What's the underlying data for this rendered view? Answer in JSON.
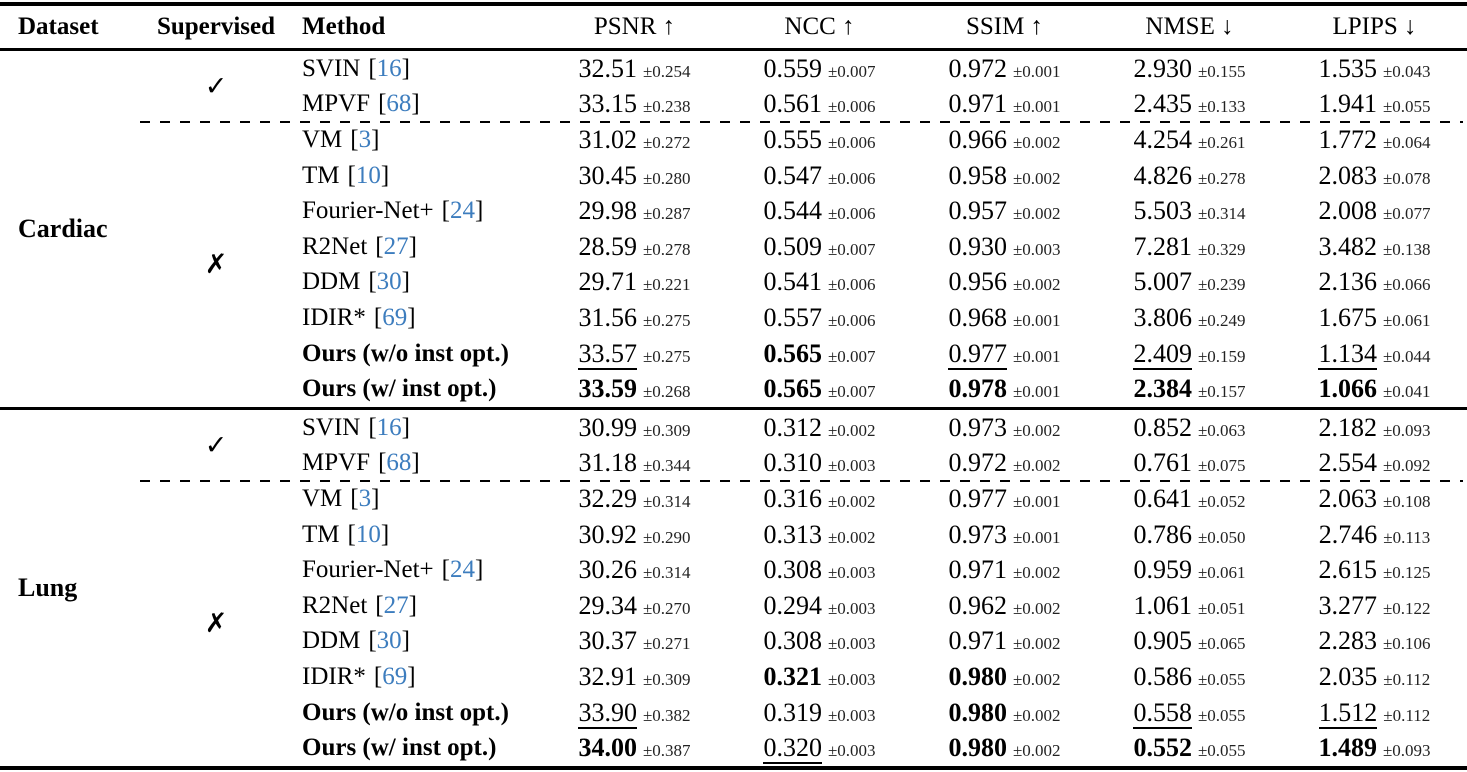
{
  "table": {
    "citation_color": "#3d7dbe",
    "citation_brackets": [
      "[",
      "]"
    ],
    "columns": [
      {
        "label": "Dataset",
        "kind": "left"
      },
      {
        "label": "Supervised",
        "kind": "left"
      },
      {
        "label": "Method",
        "kind": "left"
      },
      {
        "label": "PSNR ↑",
        "kind": "metric"
      },
      {
        "label": "NCC ↑",
        "kind": "metric"
      },
      {
        "label": "SSIM ↑",
        "kind": "metric"
      },
      {
        "label": "NMSE ↓",
        "kind": "metric"
      },
      {
        "label": "LPIPS ↓",
        "kind": "metric"
      }
    ],
    "supervised_yes_mark": "✓",
    "supervised_no_mark": "✗",
    "sections": [
      {
        "dataset": "Cardiac",
        "groups": [
          {
            "supervised": "yes",
            "rows": [
              {
                "method": "SVIN",
                "citation": "16",
                "bold": false,
                "metrics": [
                  {
                    "v": "32.51",
                    "pm": "±0.254",
                    "s": "n"
                  },
                  {
                    "v": "0.559",
                    "pm": "±0.007",
                    "s": "n"
                  },
                  {
                    "v": "0.972",
                    "pm": "±0.001",
                    "s": "n"
                  },
                  {
                    "v": "2.930",
                    "pm": "±0.155",
                    "s": "n"
                  },
                  {
                    "v": "1.535",
                    "pm": "±0.043",
                    "s": "n"
                  }
                ]
              },
              {
                "method": "MPVF",
                "citation": "68",
                "bold": false,
                "metrics": [
                  {
                    "v": "33.15",
                    "pm": "±0.238",
                    "s": "n"
                  },
                  {
                    "v": "0.561",
                    "pm": "±0.006",
                    "s": "n"
                  },
                  {
                    "v": "0.971",
                    "pm": "±0.001",
                    "s": "n"
                  },
                  {
                    "v": "2.435",
                    "pm": "±0.133",
                    "s": "n"
                  },
                  {
                    "v": "1.941",
                    "pm": "±0.055",
                    "s": "n"
                  }
                ]
              }
            ]
          },
          {
            "supervised": "no",
            "rows": [
              {
                "method": "VM",
                "citation": "3",
                "bold": false,
                "metrics": [
                  {
                    "v": "31.02",
                    "pm": "±0.272",
                    "s": "n"
                  },
                  {
                    "v": "0.555",
                    "pm": "±0.006",
                    "s": "n"
                  },
                  {
                    "v": "0.966",
                    "pm": "±0.002",
                    "s": "n"
                  },
                  {
                    "v": "4.254",
                    "pm": "±0.261",
                    "s": "n"
                  },
                  {
                    "v": "1.772",
                    "pm": "±0.064",
                    "s": "n"
                  }
                ]
              },
              {
                "method": "TM",
                "citation": "10",
                "bold": false,
                "metrics": [
                  {
                    "v": "30.45",
                    "pm": "±0.280",
                    "s": "n"
                  },
                  {
                    "v": "0.547",
                    "pm": "±0.006",
                    "s": "n"
                  },
                  {
                    "v": "0.958",
                    "pm": "±0.002",
                    "s": "n"
                  },
                  {
                    "v": "4.826",
                    "pm": "±0.278",
                    "s": "n"
                  },
                  {
                    "v": "2.083",
                    "pm": "±0.078",
                    "s": "n"
                  }
                ]
              },
              {
                "method": "Fourier-Net+",
                "citation": "24",
                "bold": false,
                "metrics": [
                  {
                    "v": "29.98",
                    "pm": "±0.287",
                    "s": "n"
                  },
                  {
                    "v": "0.544",
                    "pm": "±0.006",
                    "s": "n"
                  },
                  {
                    "v": "0.957",
                    "pm": "±0.002",
                    "s": "n"
                  },
                  {
                    "v": "5.503",
                    "pm": "±0.314",
                    "s": "n"
                  },
                  {
                    "v": "2.008",
                    "pm": "±0.077",
                    "s": "n"
                  }
                ]
              },
              {
                "method": "R2Net",
                "citation": "27",
                "bold": false,
                "metrics": [
                  {
                    "v": "28.59",
                    "pm": "±0.278",
                    "s": "n"
                  },
                  {
                    "v": "0.509",
                    "pm": "±0.007",
                    "s": "n"
                  },
                  {
                    "v": "0.930",
                    "pm": "±0.003",
                    "s": "n"
                  },
                  {
                    "v": "7.281",
                    "pm": "±0.329",
                    "s": "n"
                  },
                  {
                    "v": "3.482",
                    "pm": "±0.138",
                    "s": "n"
                  }
                ]
              },
              {
                "method": "DDM",
                "citation": "30",
                "bold": false,
                "metrics": [
                  {
                    "v": "29.71",
                    "pm": "±0.221",
                    "s": "n"
                  },
                  {
                    "v": "0.541",
                    "pm": "±0.006",
                    "s": "n"
                  },
                  {
                    "v": "0.956",
                    "pm": "±0.002",
                    "s": "n"
                  },
                  {
                    "v": "5.007",
                    "pm": "±0.239",
                    "s": "n"
                  },
                  {
                    "v": "2.136",
                    "pm": "±0.066",
                    "s": "n"
                  }
                ]
              },
              {
                "method": "IDIR*",
                "citation": "69",
                "bold": false,
                "metrics": [
                  {
                    "v": "31.56",
                    "pm": "±0.275",
                    "s": "n"
                  },
                  {
                    "v": "0.557",
                    "pm": "±0.006",
                    "s": "n"
                  },
                  {
                    "v": "0.968",
                    "pm": "±0.001",
                    "s": "n"
                  },
                  {
                    "v": "3.806",
                    "pm": "±0.249",
                    "s": "n"
                  },
                  {
                    "v": "1.675",
                    "pm": "±0.061",
                    "s": "n"
                  }
                ]
              },
              {
                "method": "Ours (w/o inst opt.)",
                "citation": null,
                "bold": true,
                "metrics": [
                  {
                    "v": "33.57",
                    "pm": "±0.275",
                    "s": "u"
                  },
                  {
                    "v": "0.565",
                    "pm": "±0.007",
                    "s": "b"
                  },
                  {
                    "v": "0.977",
                    "pm": "±0.001",
                    "s": "u"
                  },
                  {
                    "v": "2.409",
                    "pm": "±0.159",
                    "s": "u"
                  },
                  {
                    "v": "1.134",
                    "pm": "±0.044",
                    "s": "u"
                  }
                ]
              },
              {
                "method": "Ours (w/ inst opt.)",
                "citation": null,
                "bold": true,
                "metrics": [
                  {
                    "v": "33.59",
                    "pm": "±0.268",
                    "s": "b"
                  },
                  {
                    "v": "0.565",
                    "pm": "±0.007",
                    "s": "b"
                  },
                  {
                    "v": "0.978",
                    "pm": "±0.001",
                    "s": "b"
                  },
                  {
                    "v": "2.384",
                    "pm": "±0.157",
                    "s": "b"
                  },
                  {
                    "v": "1.066",
                    "pm": "±0.041",
                    "s": "b"
                  }
                ]
              }
            ]
          }
        ]
      },
      {
        "dataset": "Lung",
        "groups": [
          {
            "supervised": "yes",
            "rows": [
              {
                "method": "SVIN",
                "citation": "16",
                "bold": false,
                "metrics": [
                  {
                    "v": "30.99",
                    "pm": "±0.309",
                    "s": "n"
                  },
                  {
                    "v": "0.312",
                    "pm": "±0.002",
                    "s": "n"
                  },
                  {
                    "v": "0.973",
                    "pm": "±0.002",
                    "s": "n"
                  },
                  {
                    "v": "0.852",
                    "pm": "±0.063",
                    "s": "n"
                  },
                  {
                    "v": "2.182",
                    "pm": "±0.093",
                    "s": "n"
                  }
                ]
              },
              {
                "method": "MPVF",
                "citation": "68",
                "bold": false,
                "metrics": [
                  {
                    "v": "31.18",
                    "pm": "±0.344",
                    "s": "n"
                  },
                  {
                    "v": "0.310",
                    "pm": "±0.003",
                    "s": "n"
                  },
                  {
                    "v": "0.972",
                    "pm": "±0.002",
                    "s": "n"
                  },
                  {
                    "v": "0.761",
                    "pm": "±0.075",
                    "s": "n"
                  },
                  {
                    "v": "2.554",
                    "pm": "±0.092",
                    "s": "n"
                  }
                ]
              }
            ]
          },
          {
            "supervised": "no",
            "rows": [
              {
                "method": "VM",
                "citation": "3",
                "bold": false,
                "metrics": [
                  {
                    "v": "32.29",
                    "pm": "±0.314",
                    "s": "n"
                  },
                  {
                    "v": "0.316",
                    "pm": "±0.002",
                    "s": "n"
                  },
                  {
                    "v": "0.977",
                    "pm": "±0.001",
                    "s": "n"
                  },
                  {
                    "v": "0.641",
                    "pm": "±0.052",
                    "s": "n"
                  },
                  {
                    "v": "2.063",
                    "pm": "±0.108",
                    "s": "n"
                  }
                ]
              },
              {
                "method": "TM",
                "citation": "10",
                "bold": false,
                "metrics": [
                  {
                    "v": "30.92",
                    "pm": "±0.290",
                    "s": "n"
                  },
                  {
                    "v": "0.313",
                    "pm": "±0.002",
                    "s": "n"
                  },
                  {
                    "v": "0.973",
                    "pm": "±0.001",
                    "s": "n"
                  },
                  {
                    "v": "0.786",
                    "pm": "±0.050",
                    "s": "n"
                  },
                  {
                    "v": "2.746",
                    "pm": "±0.113",
                    "s": "n"
                  }
                ]
              },
              {
                "method": "Fourier-Net+",
                "citation": "24",
                "bold": false,
                "metrics": [
                  {
                    "v": "30.26",
                    "pm": "±0.314",
                    "s": "n"
                  },
                  {
                    "v": "0.308",
                    "pm": "±0.003",
                    "s": "n"
                  },
                  {
                    "v": "0.971",
                    "pm": "±0.002",
                    "s": "n"
                  },
                  {
                    "v": "0.959",
                    "pm": "±0.061",
                    "s": "n"
                  },
                  {
                    "v": "2.615",
                    "pm": "±0.125",
                    "s": "n"
                  }
                ]
              },
              {
                "method": "R2Net",
                "citation": "27",
                "bold": false,
                "metrics": [
                  {
                    "v": "29.34",
                    "pm": "±0.270",
                    "s": "n"
                  },
                  {
                    "v": "0.294",
                    "pm": "±0.003",
                    "s": "n"
                  },
                  {
                    "v": "0.962",
                    "pm": "±0.002",
                    "s": "n"
                  },
                  {
                    "v": "1.061",
                    "pm": "±0.051",
                    "s": "n"
                  },
                  {
                    "v": "3.277",
                    "pm": "±0.122",
                    "s": "n"
                  }
                ]
              },
              {
                "method": "DDM",
                "citation": "30",
                "bold": false,
                "metrics": [
                  {
                    "v": "30.37",
                    "pm": "±0.271",
                    "s": "n"
                  },
                  {
                    "v": "0.308",
                    "pm": "±0.003",
                    "s": "n"
                  },
                  {
                    "v": "0.971",
                    "pm": "±0.002",
                    "s": "n"
                  },
                  {
                    "v": "0.905",
                    "pm": "±0.065",
                    "s": "n"
                  },
                  {
                    "v": "2.283",
                    "pm": "±0.106",
                    "s": "n"
                  }
                ]
              },
              {
                "method": "IDIR*",
                "citation": "69",
                "bold": false,
                "metrics": [
                  {
                    "v": "32.91",
                    "pm": "±0.309",
                    "s": "n"
                  },
                  {
                    "v": "0.321",
                    "pm": "±0.003",
                    "s": "b"
                  },
                  {
                    "v": "0.980",
                    "pm": "±0.002",
                    "s": "b"
                  },
                  {
                    "v": "0.586",
                    "pm": "±0.055",
                    "s": "n"
                  },
                  {
                    "v": "2.035",
                    "pm": "±0.112",
                    "s": "n"
                  }
                ]
              },
              {
                "method": "Ours (w/o inst opt.)",
                "citation": null,
                "bold": true,
                "metrics": [
                  {
                    "v": "33.90",
                    "pm": "±0.382",
                    "s": "u"
                  },
                  {
                    "v": "0.319",
                    "pm": "±0.003",
                    "s": "n"
                  },
                  {
                    "v": "0.980",
                    "pm": "±0.002",
                    "s": "b"
                  },
                  {
                    "v": "0.558",
                    "pm": "±0.055",
                    "s": "u"
                  },
                  {
                    "v": "1.512",
                    "pm": "±0.112",
                    "s": "u"
                  }
                ]
              },
              {
                "method": "Ours (w/ inst opt.)",
                "citation": null,
                "bold": true,
                "metrics": [
                  {
                    "v": "34.00",
                    "pm": "±0.387",
                    "s": "b"
                  },
                  {
                    "v": "0.320",
                    "pm": "±0.003",
                    "s": "u"
                  },
                  {
                    "v": "0.980",
                    "pm": "±0.002",
                    "s": "b"
                  },
                  {
                    "v": "0.552",
                    "pm": "±0.055",
                    "s": "b"
                  },
                  {
                    "v": "1.489",
                    "pm": "±0.093",
                    "s": "b"
                  }
                ]
              }
            ]
          }
        ]
      }
    ]
  }
}
